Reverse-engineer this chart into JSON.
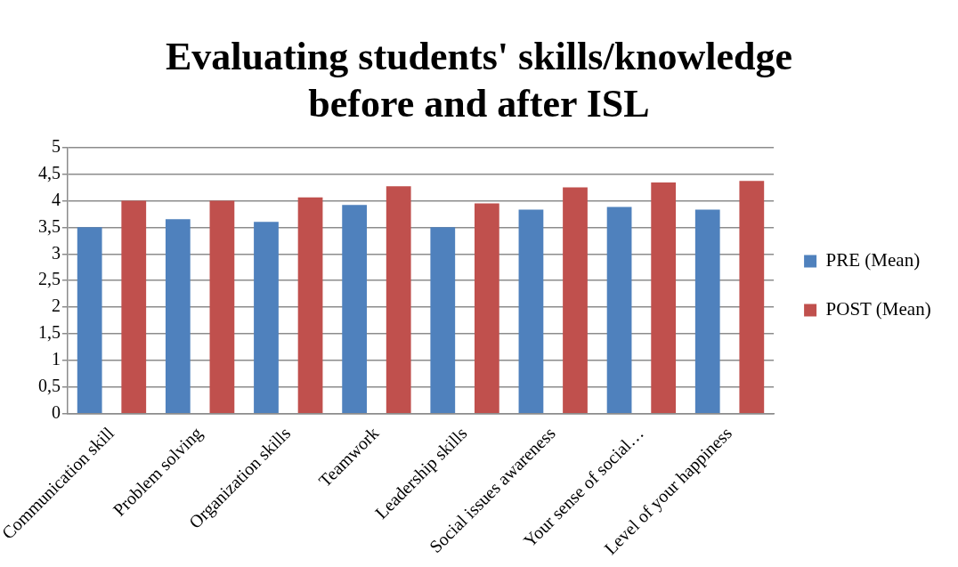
{
  "chart_data": {
    "type": "bar",
    "title": "Evaluating students' skills/knowledge before and after ISL",
    "categories": [
      "Communication skill",
      "Problem solving",
      "Organization skills",
      "Teamwork",
      "Leadership skills",
      "Social issues awareness",
      "Your sense of social…",
      "Level of your happiness"
    ],
    "series": [
      {
        "name": "PRE (Mean)",
        "color": "#4f81bd",
        "values": [
          3.5,
          3.65,
          3.6,
          3.92,
          3.5,
          3.83,
          3.88,
          3.83
        ]
      },
      {
        "name": "POST (Mean)",
        "color": "#c0504d",
        "values": [
          4.0,
          4.0,
          4.06,
          4.27,
          3.95,
          4.25,
          4.34,
          4.37
        ]
      }
    ],
    "ylim": [
      0,
      5
    ],
    "yticks": [
      0,
      {
        "value": 0.5,
        "label": "0,5"
      },
      1,
      {
        "value": 1.5,
        "label": "1,5"
      },
      2,
      {
        "value": 2.5,
        "label": "2,5"
      },
      3,
      {
        "value": 3.5,
        "label": "3,5"
      },
      4,
      {
        "value": 4.5,
        "label": "4,5"
      },
      5
    ],
    "grid": "y",
    "legend": "right"
  }
}
